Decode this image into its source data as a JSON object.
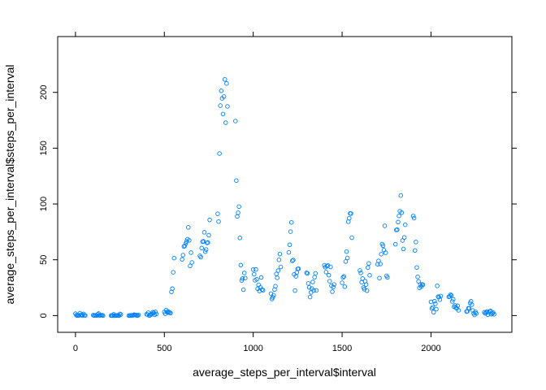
{
  "chart_data": {
    "type": "scatter",
    "xlabel": "average_steps_per_interval$interval",
    "ylabel": "average_steps_per_interval$steps_per_interval",
    "xlim": [
      -100,
      2455
    ],
    "ylim": [
      -15,
      250
    ],
    "x_ticks": [
      0,
      500,
      1000,
      1500,
      2000
    ],
    "y_ticks": [
      0,
      50,
      100,
      150,
      200
    ],
    "grid": false,
    "legend": "none",
    "point_color": "#0080ff",
    "marker": "open-circle",
    "series": [
      {
        "x": [
          0,
          5,
          10,
          15,
          20,
          25,
          30,
          35,
          40,
          45,
          50,
          55,
          100,
          105,
          110,
          115,
          120,
          125,
          130,
          135,
          140,
          145,
          150,
          155,
          200,
          205,
          210,
          215,
          220,
          225,
          230,
          235,
          240,
          245,
          250,
          255,
          300,
          305,
          310,
          315,
          320,
          325,
          330,
          335,
          340,
          345,
          350,
          355,
          400,
          405,
          410,
          415,
          420,
          425,
          430,
          435,
          440,
          445,
          450,
          455,
          500,
          505,
          510,
          515,
          520,
          525,
          530,
          535,
          540,
          545,
          550,
          555,
          600,
          605,
          610,
          615,
          620,
          625,
          630,
          635,
          640,
          645,
          650,
          655,
          700,
          705,
          710,
          715,
          720,
          725,
          730,
          735,
          740,
          745,
          750,
          755,
          800,
          805,
          810,
          815,
          820,
          825,
          830,
          835,
          840,
          845,
          850,
          855,
          900,
          905,
          910,
          915,
          920,
          925,
          930,
          935,
          940,
          945,
          950,
          955,
          1000,
          1005,
          1010,
          1015,
          1020,
          1025,
          1030,
          1035,
          1040,
          1045,
          1050,
          1055,
          1100,
          1105,
          1110,
          1115,
          1120,
          1125,
          1130,
          1135,
          1140,
          1145,
          1150,
          1155,
          1200,
          1205,
          1210,
          1215,
          1220,
          1225,
          1230,
          1235,
          1240,
          1245,
          1250,
          1255,
          1300,
          1305,
          1310,
          1315,
          1320,
          1325,
          1330,
          1335,
          1340,
          1345,
          1350,
          1355,
          1400,
          1405,
          1410,
          1415,
          1420,
          1425,
          1430,
          1435,
          1440,
          1445,
          1450,
          1455,
          1500,
          1505,
          1510,
          1515,
          1520,
          1525,
          1530,
          1535,
          1540,
          1545,
          1550,
          1555,
          1600,
          1605,
          1610,
          1615,
          1620,
          1625,
          1630,
          1635,
          1640,
          1645,
          1650,
          1655,
          1700,
          1705,
          1710,
          1715,
          1720,
          1725,
          1730,
          1735,
          1740,
          1745,
          1750,
          1755,
          1800,
          1805,
          1810,
          1815,
          1820,
          1825,
          1830,
          1835,
          1840,
          1845,
          1850,
          1855,
          1900,
          1905,
          1910,
          1915,
          1920,
          1925,
          1930,
          1935,
          1940,
          1945,
          1950,
          1955,
          2000,
          2005,
          2010,
          2015,
          2020,
          2025,
          2030,
          2035,
          2040,
          2045,
          2050,
          2055,
          2100,
          2105,
          2110,
          2115,
          2120,
          2125,
          2130,
          2135,
          2140,
          2145,
          2150,
          2155,
          2200,
          2205,
          2210,
          2215,
          2220,
          2225,
          2230,
          2235,
          2240,
          2245,
          2250,
          2255,
          2300,
          2305,
          2310,
          2315,
          2320,
          2325,
          2330,
          2335,
          2340,
          2345,
          2350,
          2355
        ],
        "y": [
          1.7,
          0.3,
          0.1,
          0.2,
          0.1,
          2.1,
          0.5,
          0.9,
          0,
          1.5,
          0.3,
          0.1,
          0.4,
          0,
          0.2,
          0.3,
          0,
          1.1,
          1.8,
          0.2,
          0.2,
          0.4,
          0.3,
          0,
          0,
          0,
          0.1,
          1.1,
          0,
          0.1,
          0,
          0.2,
          0,
          0,
          1.5,
          0.9,
          0,
          0,
          0,
          0.2,
          0.2,
          0.3,
          0.8,
          0.5,
          0.6,
          0.1,
          0,
          0.6,
          1.2,
          0.9,
          2.6,
          0,
          0.3,
          1.1,
          1.4,
          3.0,
          2.5,
          0.7,
          3.3,
          1.4,
          3.2,
          1.6,
          4.9,
          3.3,
          2.7,
          3.3,
          2.6,
          2.2,
          21.2,
          24.1,
          38.8,
          51.5,
          50.4,
          54.2,
          61.9,
          62.4,
          64.5,
          66.4,
          68.4,
          79.0,
          67.4,
          44.5,
          56.4,
          47.6,
          53.5,
          52.3,
          60.5,
          66.2,
          66.5,
          74.6,
          57.3,
          59.2,
          65.1,
          65.5,
          72.0,
          85.7,
          91.2,
          84.2,
          145.2,
          188.1,
          201.4,
          194.6,
          180.6,
          196.2,
          211.6,
          172.8,
          208.0,
          187.4,
          174.3,
          121.0,
          88.8,
          92.1,
          97.6,
          69.6,
          45.2,
          31.5,
          33.2,
          23.2,
          38.2,
          33.6,
          41.2,
          37.0,
          31.6,
          41.3,
          32.5,
          24.1,
          27.5,
          22.0,
          25.2,
          34.1,
          23.3,
          22.6,
          19.6,
          14.9,
          16.4,
          18.3,
          23.3,
          26.3,
          37.3,
          33.8,
          40.3,
          49.9,
          55.1,
          43.6,
          56.6,
          63.4,
          75.2,
          83.5,
          49.1,
          49.8,
          36.9,
          22.4,
          35.2,
          38.6,
          41.8,
          42.0,
          38.3,
          37.8,
          28.8,
          25.2,
          16.6,
          20.7,
          24.2,
          30.1,
          22.5,
          34.4,
          37.8,
          22.6,
          45.1,
          43.4,
          39.0,
          44.3,
          44.9,
          36.2,
          30.8,
          43.6,
          26.8,
          21.4,
          25.5,
          27.9,
          29.4,
          34.1,
          35.1,
          25.9,
          48.4,
          57.3,
          51.6,
          84.1,
          87.2,
          91.5,
          91.4,
          69.8,
          40.4,
          38.2,
          29.8,
          33.2,
          25.1,
          23.7,
          30.8,
          27.8,
          22.3,
          43.0,
          46.7,
          36.1,
          46.0,
          49.0,
          33.6,
          46.2,
          55.0,
          64.0,
          62.6,
          58.7,
          80.4,
          56.3,
          35.6,
          34.2,
          63.9,
          76.7,
          77.0,
          83.8,
          89.3,
          93.5,
          107.6,
          92.2,
          67.3,
          59.7,
          70.0,
          81.4,
          89.2,
          87.3,
          58.3,
          65.9,
          43.1,
          34.7,
          30.6,
          24.8,
          27.9,
          26.0,
          28.0,
          27.6,
          12.3,
          6.3,
          7.4,
          3.0,
          12.9,
          10.6,
          5.8,
          26.6,
          16.9,
          16.5,
          14.3,
          17.5,
          16.8,
          17.2,
          18.7,
          18.0,
          12.7,
          14.6,
          7.9,
          9.1,
          7.1,
          6.4,
          8.8,
          4.7,
          3.6,
          3.9,
          6.6,
          6.4,
          11.2,
          12.8,
          9.8,
          4.6,
          2.0,
          0.6,
          3.3,
          1.9,
          2.9,
          2.0,
          2.9,
          3.6,
          0.7,
          2.6,
          3.7,
          4.2,
          1.2,
          2.0,
          2.7,
          1.2
        ]
      }
    ]
  }
}
